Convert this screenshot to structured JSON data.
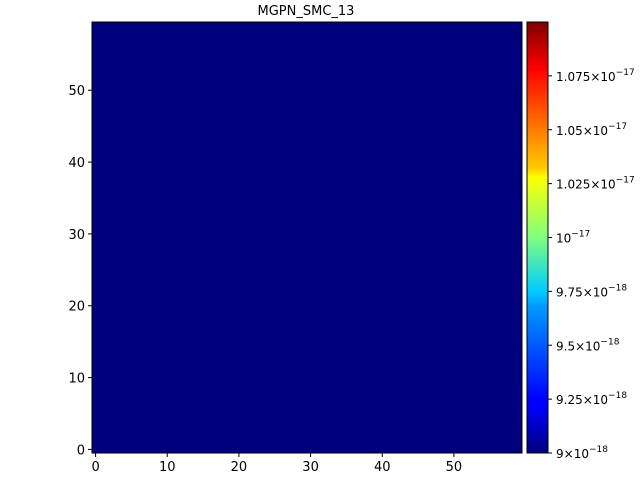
{
  "chart_data": {
    "type": "heatmap",
    "title": "MGPN_SMC_13",
    "xlabel": "",
    "ylabel": "",
    "x_range": [
      -0.5,
      59.5
    ],
    "y_range": [
      -0.5,
      59.5
    ],
    "x_ticks": [
      0,
      10,
      20,
      30,
      40,
      50
    ],
    "y_ticks": [
      0,
      10,
      20,
      30,
      40,
      50
    ],
    "x_tick_labels": [
      "0",
      "10",
      "20",
      "30",
      "40",
      "50"
    ],
    "y_tick_labels": [
      "0",
      "10",
      "20",
      "30",
      "40",
      "50"
    ],
    "grid_size": [
      60,
      60
    ],
    "fill_value": 9e-18,
    "fill_color": "#00007f",
    "colormap": "jet",
    "colorbar": {
      "range": [
        9e-18,
        1.1e-17
      ],
      "ticks": [
        {
          "value": 9e-18,
          "mantissa": "9",
          "exponent": "−18",
          "times": true
        },
        {
          "value": 9.25e-18,
          "mantissa": "9.25",
          "exponent": "−18",
          "times": true
        },
        {
          "value": 9.5e-18,
          "mantissa": "9.5",
          "exponent": "−18",
          "times": true
        },
        {
          "value": 9.75e-18,
          "mantissa": "9.75",
          "exponent": "−18",
          "times": true
        },
        {
          "value": 1e-17,
          "mantissa": "10",
          "exponent": "−17",
          "times": false
        },
        {
          "value": 1.025e-17,
          "mantissa": "1.025",
          "exponent": "−17",
          "times": true
        },
        {
          "value": 1.05e-17,
          "mantissa": "1.05",
          "exponent": "−17",
          "times": true
        },
        {
          "value": 1.075e-17,
          "mantissa": "1.075",
          "exponent": "−17",
          "times": true
        }
      ]
    },
    "grid": false
  }
}
